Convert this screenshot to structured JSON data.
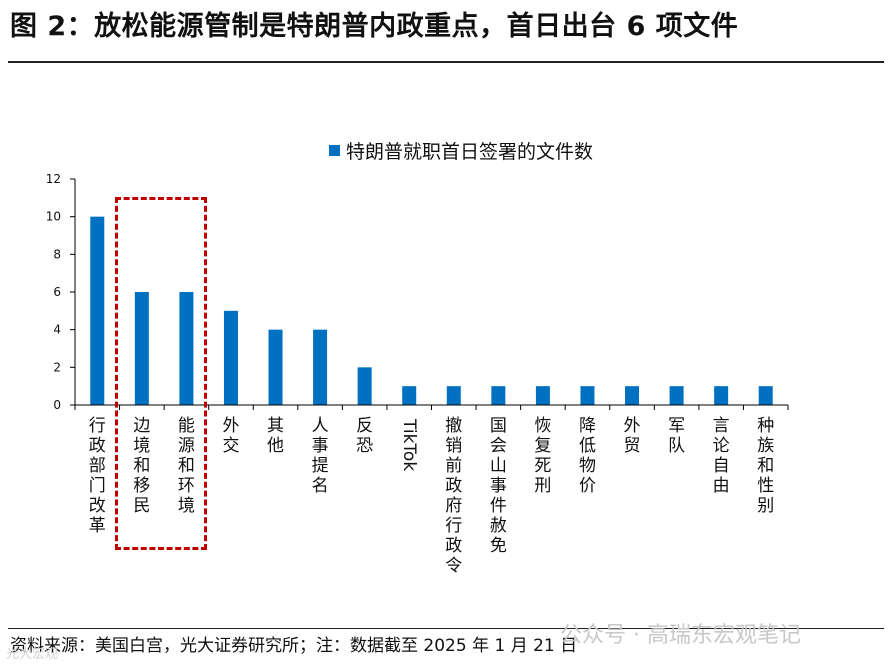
{
  "figure": {
    "title": "图 2：放松能源管制是特朗普内政重点，首日出台 6 项文件",
    "source": "资料来源：美国白宫，光大证券研究所；注：数据截至 2025 年 1 月 21 日",
    "watermark": "公众号 · 高瑞东宏观笔记",
    "watermark_small": "光大宏观"
  },
  "colors": {
    "bar": "#0070c0",
    "highlight": "#c00000",
    "axis": "#000000"
  },
  "chart_data": {
    "type": "bar",
    "title": "",
    "xlabel": "",
    "ylabel": "",
    "ylim": [
      0,
      12
    ],
    "yticks": [
      0,
      2,
      4,
      6,
      8,
      10,
      12
    ],
    "grid": false,
    "legend": "top-center",
    "categories": [
      "行政部门改革",
      "边境和移民",
      "能源和环境",
      "外交",
      "其他",
      "人事提名",
      "反恐",
      "TikTok",
      "撤销前政府行政令",
      "国会山事件赦免",
      "恢复死刑",
      "降低物价",
      "外贸",
      "军队",
      "言论自由",
      "种族和性别"
    ],
    "series": [
      {
        "name": "特朗普就职首日签署的文件数",
        "values": [
          10,
          6,
          6,
          5,
          4,
          4,
          2,
          1,
          1,
          1,
          1,
          1,
          1,
          1,
          1,
          1
        ]
      }
    ],
    "annotations": [
      {
        "type": "dashed-box",
        "categories": [
          "边境和移民",
          "能源和环境"
        ]
      }
    ]
  }
}
